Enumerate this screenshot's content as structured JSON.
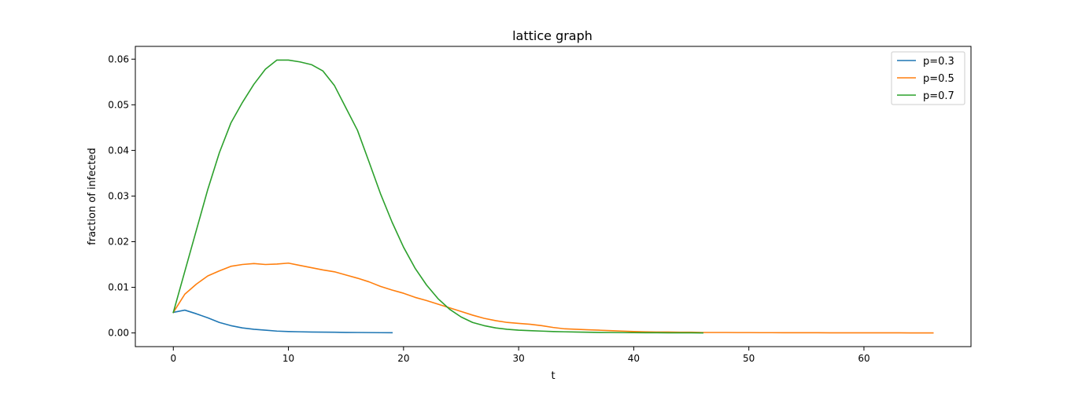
{
  "chart_data": {
    "type": "line",
    "title": "lattice graph",
    "xlabel": "t",
    "ylabel": "fraction of infected",
    "xlim": [
      -3.3,
      69.3
    ],
    "ylim": [
      -0.003,
      0.0628
    ],
    "xticks": [
      0,
      10,
      20,
      30,
      40,
      50,
      60
    ],
    "xtick_labels": [
      "0",
      "10",
      "20",
      "30",
      "40",
      "50",
      "60"
    ],
    "yticks": [
      0.0,
      0.01,
      0.02,
      0.03,
      0.04,
      0.05,
      0.06
    ],
    "ytick_labels": [
      "0.00",
      "0.01",
      "0.02",
      "0.03",
      "0.04",
      "0.05",
      "0.06"
    ],
    "grid": false,
    "legend_position": "top-right",
    "series": [
      {
        "name": "p=0.3",
        "color": "#1f77b4",
        "x": [
          0,
          1,
          2,
          3,
          4,
          5,
          6,
          7,
          8,
          9,
          10,
          11,
          12,
          13,
          14,
          15,
          16,
          17,
          18,
          19
        ],
        "y": [
          0.0045,
          0.005,
          0.0042,
          0.0033,
          0.0023,
          0.0016,
          0.0011,
          0.0008,
          0.0006,
          0.0004,
          0.0003,
          0.00025,
          0.0002,
          0.00018,
          0.00015,
          0.00012,
          0.0001,
          8e-05,
          6e-05,
          5e-05
        ]
      },
      {
        "name": "p=0.5",
        "color": "#ff7f0e",
        "x": [
          0,
          1,
          2,
          3,
          4,
          5,
          6,
          7,
          8,
          9,
          10,
          11,
          12,
          13,
          14,
          15,
          16,
          17,
          18,
          19,
          20,
          21,
          22,
          23,
          24,
          25,
          26,
          27,
          28,
          29,
          30,
          31,
          32,
          33,
          34,
          35,
          36,
          37,
          38,
          39,
          40,
          41,
          42,
          43,
          44,
          45,
          46,
          47,
          48,
          49,
          50,
          51,
          52,
          53,
          54,
          55,
          56,
          57,
          58,
          59,
          60,
          61,
          62,
          63,
          64,
          65,
          66
        ],
        "y": [
          0.0045,
          0.0085,
          0.0107,
          0.0125,
          0.0136,
          0.0146,
          0.015,
          0.0152,
          0.015,
          0.0151,
          0.0153,
          0.0148,
          0.0143,
          0.0138,
          0.0134,
          0.0127,
          0.012,
          0.0112,
          0.0102,
          0.0094,
          0.0087,
          0.0078,
          0.0071,
          0.0063,
          0.0055,
          0.0047,
          0.0039,
          0.0032,
          0.0027,
          0.0023,
          0.0021,
          0.0019,
          0.0016,
          0.0012,
          0.0009,
          0.0008,
          0.0007,
          0.0006,
          0.0005,
          0.0004,
          0.0003,
          0.00025,
          0.0002,
          0.0002,
          0.00015,
          0.00015,
          0.0001,
          0.0001,
          0.0001,
          8e-05,
          8e-05,
          6e-05,
          6e-05,
          5e-05,
          5e-05,
          4e-05,
          4e-05,
          3e-05,
          3e-05,
          3e-05,
          2e-05,
          2e-05,
          2e-05,
          2e-05,
          1e-05,
          1e-05,
          1e-05
        ]
      },
      {
        "name": "p=0.7",
        "color": "#2ca02c",
        "x": [
          0,
          1,
          2,
          3,
          4,
          5,
          6,
          7,
          8,
          9,
          10,
          11,
          12,
          13,
          14,
          15,
          16,
          17,
          18,
          19,
          20,
          21,
          22,
          23,
          24,
          25,
          26,
          27,
          28,
          29,
          30,
          31,
          32,
          33,
          34,
          35,
          36,
          37,
          38,
          39,
          40,
          41,
          42,
          43,
          44,
          45,
          46
        ],
        "y": [
          0.0045,
          0.0135,
          0.0225,
          0.0315,
          0.0395,
          0.046,
          0.0505,
          0.0545,
          0.0578,
          0.0598,
          0.0598,
          0.0594,
          0.0588,
          0.0574,
          0.0542,
          0.0493,
          0.0444,
          0.0375,
          0.0305,
          0.0243,
          0.0188,
          0.0142,
          0.0105,
          0.0075,
          0.0052,
          0.0035,
          0.0023,
          0.0016,
          0.0011,
          0.0008,
          0.0006,
          0.0005,
          0.0004,
          0.0003,
          0.00025,
          0.0002,
          0.00015,
          0.00012,
          0.0001,
          8e-05,
          6e-05,
          5e-05,
          4e-05,
          3e-05,
          2e-05,
          2e-05,
          1e-05
        ]
      }
    ]
  }
}
